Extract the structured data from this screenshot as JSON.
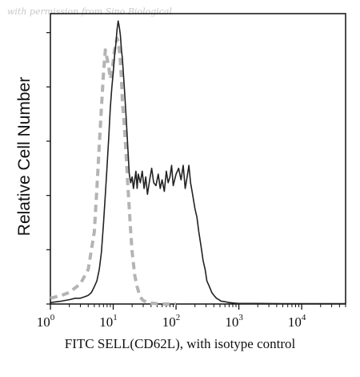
{
  "watermark": "with permission from Sino Biological",
  "chart_data": {
    "type": "line",
    "title": "",
    "xlabel": "FITC SELL(CD62L), with isotype control",
    "ylabel": "Relative Cell Number",
    "x_scale": "log",
    "xlim": [
      1,
      50000
    ],
    "ylim": [
      0,
      1.0
    ],
    "x_ticks": [
      {
        "base": "10",
        "exp": "0",
        "value": 1
      },
      {
        "base": "10",
        "exp": "1",
        "value": 10
      },
      {
        "base": "10",
        "exp": "2",
        "value": 100
      },
      {
        "base": "10",
        "exp": "3",
        "value": 1000
      },
      {
        "base": "10",
        "exp": "4",
        "value": 10000
      }
    ],
    "grid": false,
    "legend": "none",
    "series": [
      {
        "style": "solid",
        "color": "#222222",
        "x": [
          1.0,
          1.5,
          2.0,
          2.5,
          3.0,
          3.5,
          4.0,
          4.5,
          5.0,
          5.5,
          6.0,
          6.5,
          7.0,
          7.5,
          8.0,
          8.5,
          9.0,
          9.5,
          10.0,
          10.5,
          11.0,
          11.5,
          12.0,
          12.5,
          13.0,
          13.5,
          14.0,
          15.0,
          16.0,
          17.0,
          18.0,
          19.0,
          20.0,
          21.0,
          22.0,
          23.0,
          24.0,
          25.0,
          27.0,
          29.0,
          31.0,
          33.0,
          35.0,
          38.0,
          41.0,
          44.0,
          48.0,
          52.0,
          56.0,
          60.0,
          65.0,
          70.0,
          75.0,
          80.0,
          85.0,
          90.0,
          95.0,
          100.0,
          110.0,
          120.0,
          130.0,
          140.0,
          150.0,
          160.0,
          170.0,
          180.0,
          190.0,
          200.0,
          215.0,
          230.0,
          250.0,
          270.0,
          290.0,
          310.0,
          340.0,
          370.0,
          400.0,
          440.0,
          480.0,
          520.0,
          600.0,
          700.0,
          850.0,
          1000.0,
          2000.0,
          5000.0,
          10000.0,
          30000.0,
          50000.0
        ],
        "values": [
          0.005,
          0.01,
          0.015,
          0.02,
          0.02,
          0.025,
          0.03,
          0.04,
          0.06,
          0.08,
          0.12,
          0.18,
          0.28,
          0.38,
          0.48,
          0.58,
          0.68,
          0.75,
          0.8,
          0.86,
          0.9,
          0.95,
          0.98,
          0.96,
          0.93,
          0.88,
          0.85,
          0.75,
          0.65,
          0.55,
          0.45,
          0.42,
          0.44,
          0.4,
          0.43,
          0.46,
          0.4,
          0.45,
          0.42,
          0.46,
          0.4,
          0.44,
          0.38,
          0.43,
          0.47,
          0.42,
          0.41,
          0.45,
          0.4,
          0.43,
          0.39,
          0.46,
          0.42,
          0.44,
          0.48,
          0.41,
          0.43,
          0.45,
          0.47,
          0.43,
          0.48,
          0.4,
          0.44,
          0.48,
          0.42,
          0.39,
          0.36,
          0.33,
          0.3,
          0.25,
          0.2,
          0.15,
          0.12,
          0.08,
          0.06,
          0.04,
          0.03,
          0.02,
          0.015,
          0.01,
          0.008,
          0.005,
          0.003,
          0.002,
          0.002,
          0.001,
          0.001,
          0.001,
          0.001
        ]
      },
      {
        "style": "dashed",
        "color": "#b4b4b4",
        "x": [
          1.0,
          1.5,
          2.0,
          3.0,
          4.0,
          5.0,
          5.5,
          6.0,
          6.5,
          7.0,
          7.5,
          8.0,
          8.5,
          9.0,
          9.5,
          10.0,
          10.5,
          11.0,
          11.5,
          12.0,
          12.5,
          13.0,
          13.5,
          14.0,
          15.0,
          16.0,
          17.0,
          18.0,
          19.0,
          20.0,
          22.0,
          24.0,
          26.0,
          28.0,
          30.0,
          35.0,
          40.0,
          50.0,
          70.0,
          100.0
        ],
        "values": [
          0.02,
          0.03,
          0.04,
          0.07,
          0.12,
          0.25,
          0.4,
          0.55,
          0.68,
          0.8,
          0.88,
          0.85,
          0.82,
          0.78,
          0.8,
          0.84,
          0.88,
          0.9,
          0.92,
          0.91,
          0.88,
          0.84,
          0.78,
          0.7,
          0.62,
          0.52,
          0.42,
          0.33,
          0.25,
          0.18,
          0.1,
          0.06,
          0.035,
          0.02,
          0.012,
          0.006,
          0.003,
          0.001,
          0.0,
          0.0
        ]
      }
    ]
  }
}
